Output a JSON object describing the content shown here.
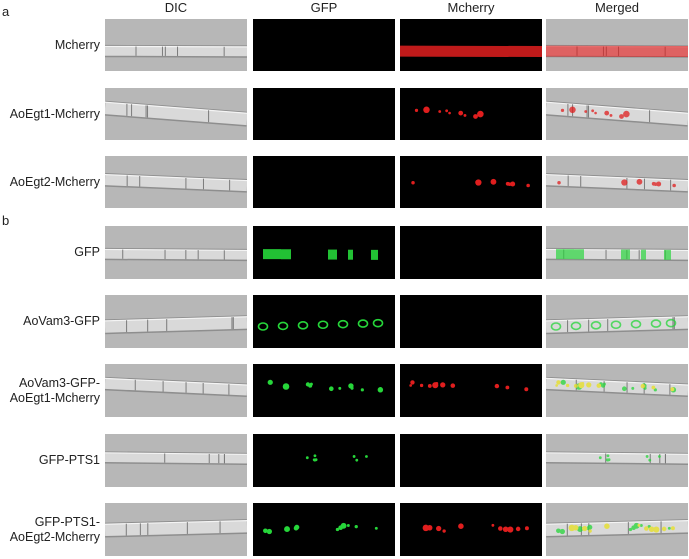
{
  "panel_a": {
    "letter": "a",
    "rows": [
      {
        "label": [
          "Mcherry"
        ],
        "gfp": "none",
        "mch": "diffuse"
      },
      {
        "label": [
          "AoEgt1-Mcherry"
        ],
        "gfp": "none",
        "mch": "puncta"
      },
      {
        "label": [
          "AoEgt2-Mcherry"
        ],
        "gfp": "none",
        "mch": "sparse"
      }
    ]
  },
  "panel_b": {
    "letter": "b",
    "rows": [
      {
        "label": [
          "GFP"
        ],
        "gfp": "blocks",
        "mch": "none"
      },
      {
        "label": [
          "AoVam3-GFP"
        ],
        "gfp": "rings",
        "mch": "none"
      },
      {
        "label": [
          "AoVam3-GFP-",
          "AoEgt1-Mcherry"
        ],
        "gfp": "puncta",
        "mch": "puncta"
      },
      {
        "label": [
          "GFP-PTS1"
        ],
        "gfp": "dots",
        "mch": "none"
      },
      {
        "label": [
          "GFP-PTS1-",
          "AoEgt2-Mcherry"
        ],
        "gfp": "puncta",
        "mch": "puncta"
      }
    ]
  },
  "columns": [
    "DIC",
    "GFP",
    "Mcherry",
    "Merged"
  ],
  "colors": {
    "gfp": "#26d63a",
    "mcherry": "#e01e1e",
    "dic_bg": "#b7b7b7",
    "dark_bg": "#000000"
  }
}
